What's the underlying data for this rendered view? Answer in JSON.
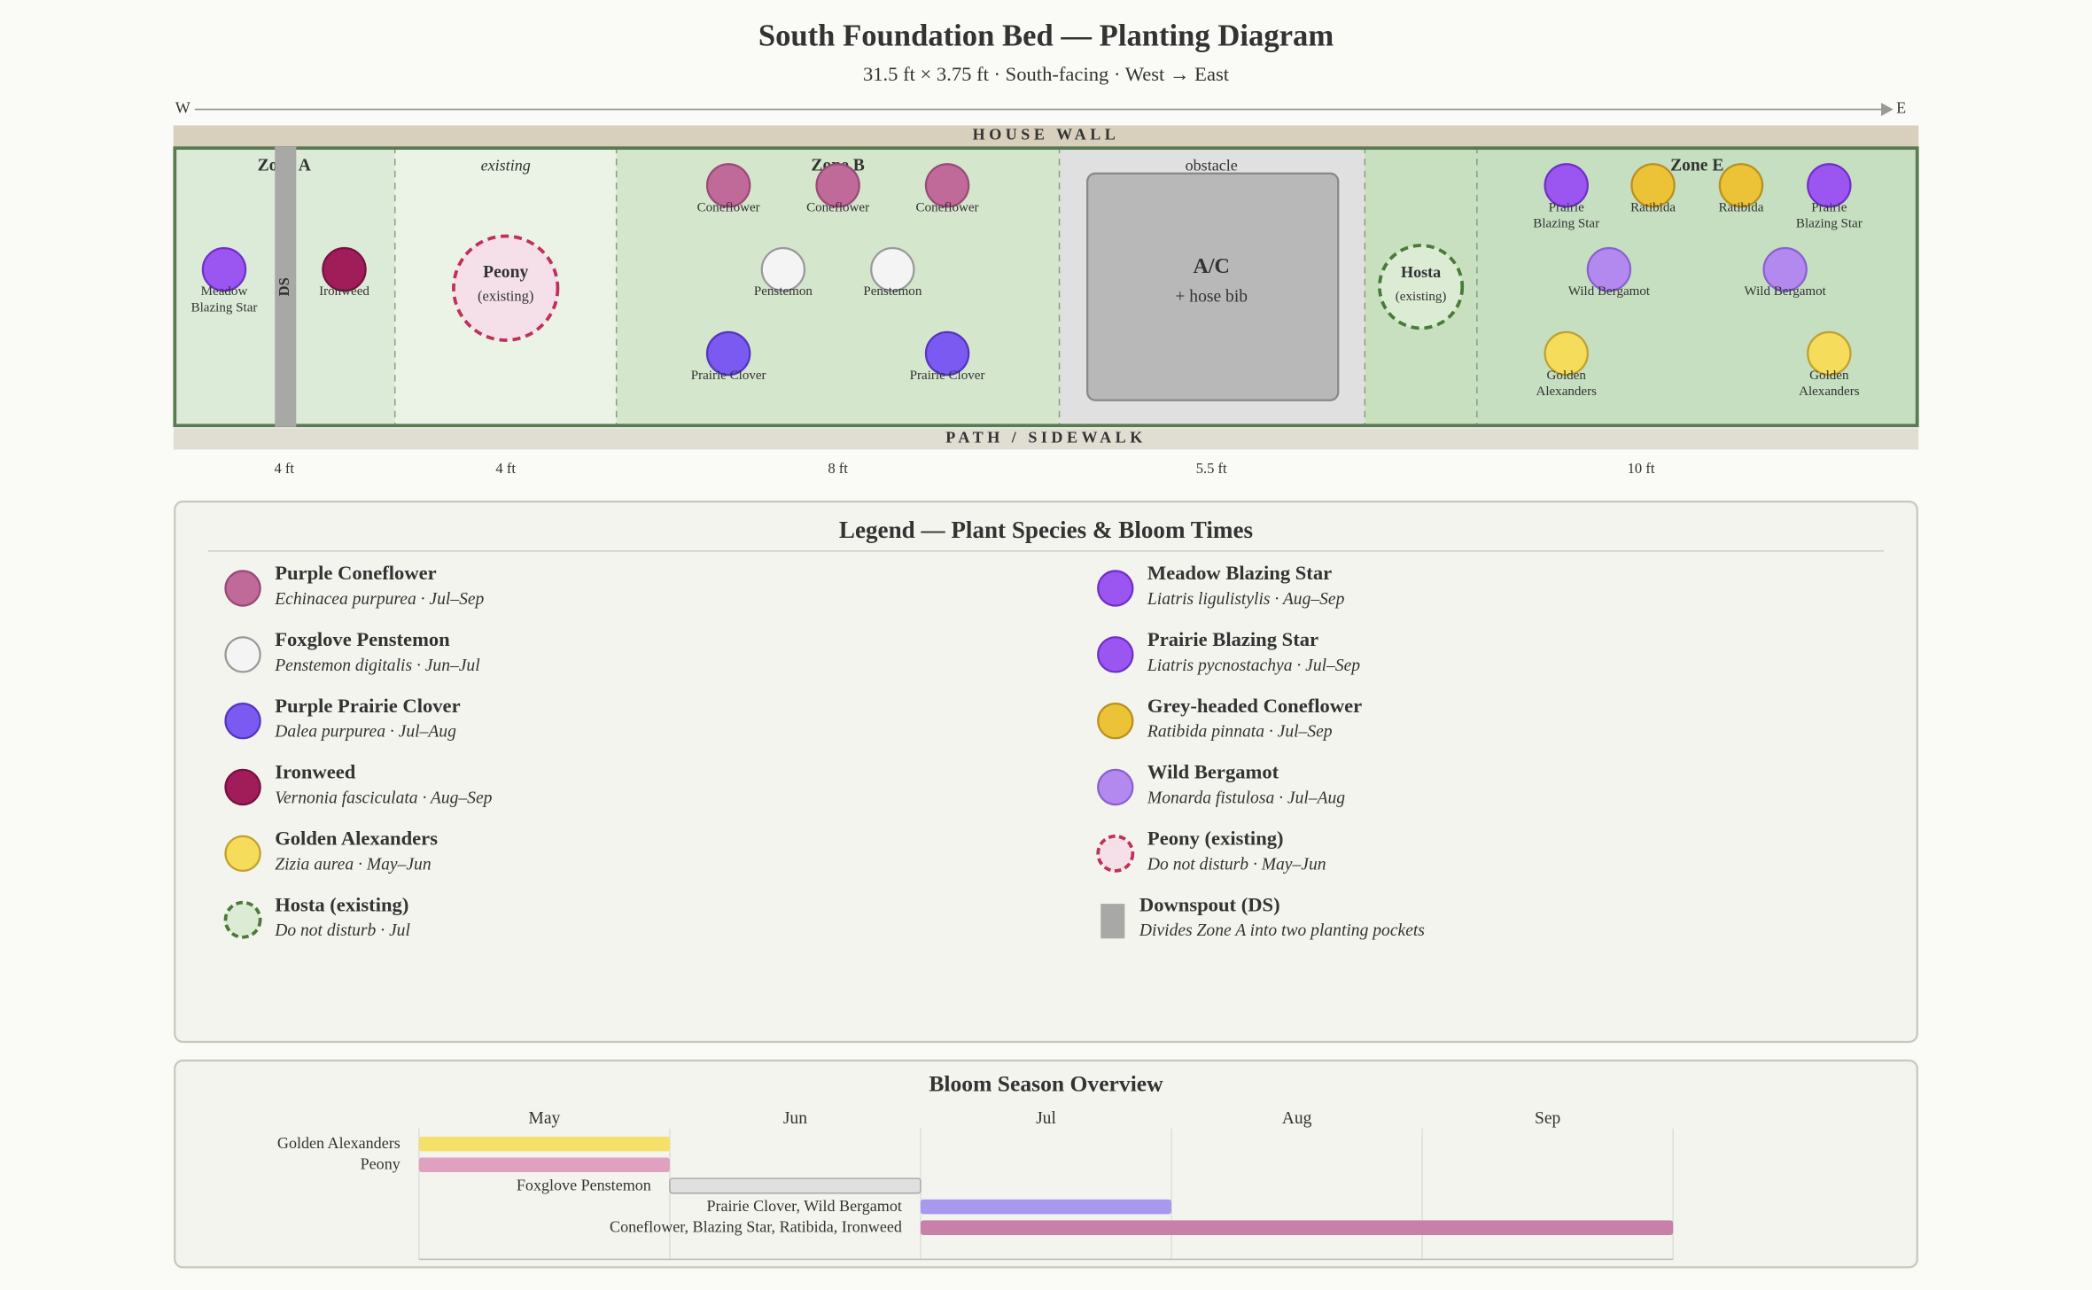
{
  "header": {
    "title": "South Foundation Bed — Planting Diagram",
    "subtitle": "31.5 ft × 3.75 ft · South-facing · West → East"
  },
  "compass": {
    "west": "W",
    "east": "E"
  },
  "bed": {
    "house_wall": "HOUSE WALL",
    "path": "PATH / SIDEWALK",
    "downspout": "DS",
    "zones": [
      {
        "label": "Zone A",
        "width": "4 ft"
      },
      {
        "label": "existing",
        "width": "4 ft"
      },
      {
        "label": "Zone B",
        "width": "8 ft"
      },
      {
        "label": "obstacle",
        "width": "5.5 ft"
      },
      {
        "label": "Zone E",
        "width": "10 ft"
      }
    ],
    "ac": {
      "title": "A/C",
      "note": "+ hose bib"
    },
    "peony": {
      "name": "Peony",
      "note": "(existing)"
    },
    "hosta": {
      "name": "Hosta",
      "note": "(existing)"
    },
    "plants": [
      {
        "lines": [
          "Meadow",
          "Blazing Star"
        ]
      },
      {
        "lines": [
          "Ironweed"
        ]
      },
      {
        "lines": [
          "Coneflower"
        ]
      },
      {
        "lines": [
          "Coneflower"
        ]
      },
      {
        "lines": [
          "Coneflower"
        ]
      },
      {
        "lines": [
          "Penstemon"
        ]
      },
      {
        "lines": [
          "Penstemon"
        ]
      },
      {
        "lines": [
          "Prairie Clover"
        ]
      },
      {
        "lines": [
          "Prairie Clover"
        ]
      },
      {
        "lines": [
          "Prairie",
          "Blazing Star"
        ]
      },
      {
        "lines": [
          "Ratibida"
        ]
      },
      {
        "lines": [
          "Ratibida"
        ]
      },
      {
        "lines": [
          "Prairie",
          "Blazing Star"
        ]
      },
      {
        "lines": [
          "Wild Bergamot"
        ]
      },
      {
        "lines": [
          "Wild Bergamot"
        ]
      },
      {
        "lines": [
          "Golden",
          "Alexanders"
        ]
      },
      {
        "lines": [
          "Golden",
          "Alexanders"
        ]
      }
    ]
  },
  "legend": {
    "title": "Legend — Plant Species & Bloom Times",
    "items": [
      {
        "name": "Purple Coneflower",
        "detail": "Echinacea purpurea · Jul–Sep",
        "color": "#c06a9a"
      },
      {
        "name": "Foxglove Penstemon",
        "detail": "Penstemon digitalis · Jun–Jul",
        "color": "#f4f4f4"
      },
      {
        "name": "Purple Prairie Clover",
        "detail": "Dalea purpurea · Jul–Aug",
        "color": "#7a5af0"
      },
      {
        "name": "Ironweed",
        "detail": "Vernonia fasciculata · Aug–Sep",
        "color": "#a01d5a"
      },
      {
        "name": "Golden Alexanders",
        "detail": "Zizia aurea · May–Jun",
        "color": "#f5dc5a"
      },
      {
        "name": "Hosta (existing)",
        "detail": "Do not disturb · Jul",
        "color": "#dcecd4"
      },
      {
        "name": "Meadow Blazing Star",
        "detail": "Liatris ligulistylis · Aug–Sep",
        "color": "#9b55f0"
      },
      {
        "name": "Prairie Blazing Star",
        "detail": "Liatris pycnostachya · Jul–Sep",
        "color": "#9b55f0"
      },
      {
        "name": "Grey-headed Coneflower",
        "detail": "Ratibida pinnata · Jul–Sep",
        "color": "#ecc236"
      },
      {
        "name": "Wild Bergamot",
        "detail": "Monarda fistulosa · Jul–Aug",
        "color": "#b389f0"
      },
      {
        "name": "Peony (existing)",
        "detail": "Do not disturb · May–Jun",
        "color": "#f5e0ea"
      },
      {
        "name": "Downspout (DS)",
        "detail": "Divides Zone A into two planting pockets",
        "color": "#a8a8a6"
      }
    ]
  },
  "bloom": {
    "title": "Bloom Season Overview",
    "months": [
      "May",
      "Jun",
      "Jul",
      "Aug",
      "Sep"
    ],
    "rows": [
      {
        "label": "Golden Alexanders",
        "color": "#f5e06a"
      },
      {
        "label": "Peony",
        "color": "#e0a0c0"
      },
      {
        "label": "Foxglove Penstemon",
        "color": "#e0e0e0"
      },
      {
        "label": "Prairie Clover, Wild Bergamot",
        "color": "#a898f0"
      },
      {
        "label": "Coneflower, Blazing Star, Ratibida, Ironweed",
        "color": "#c880a8"
      }
    ]
  }
}
